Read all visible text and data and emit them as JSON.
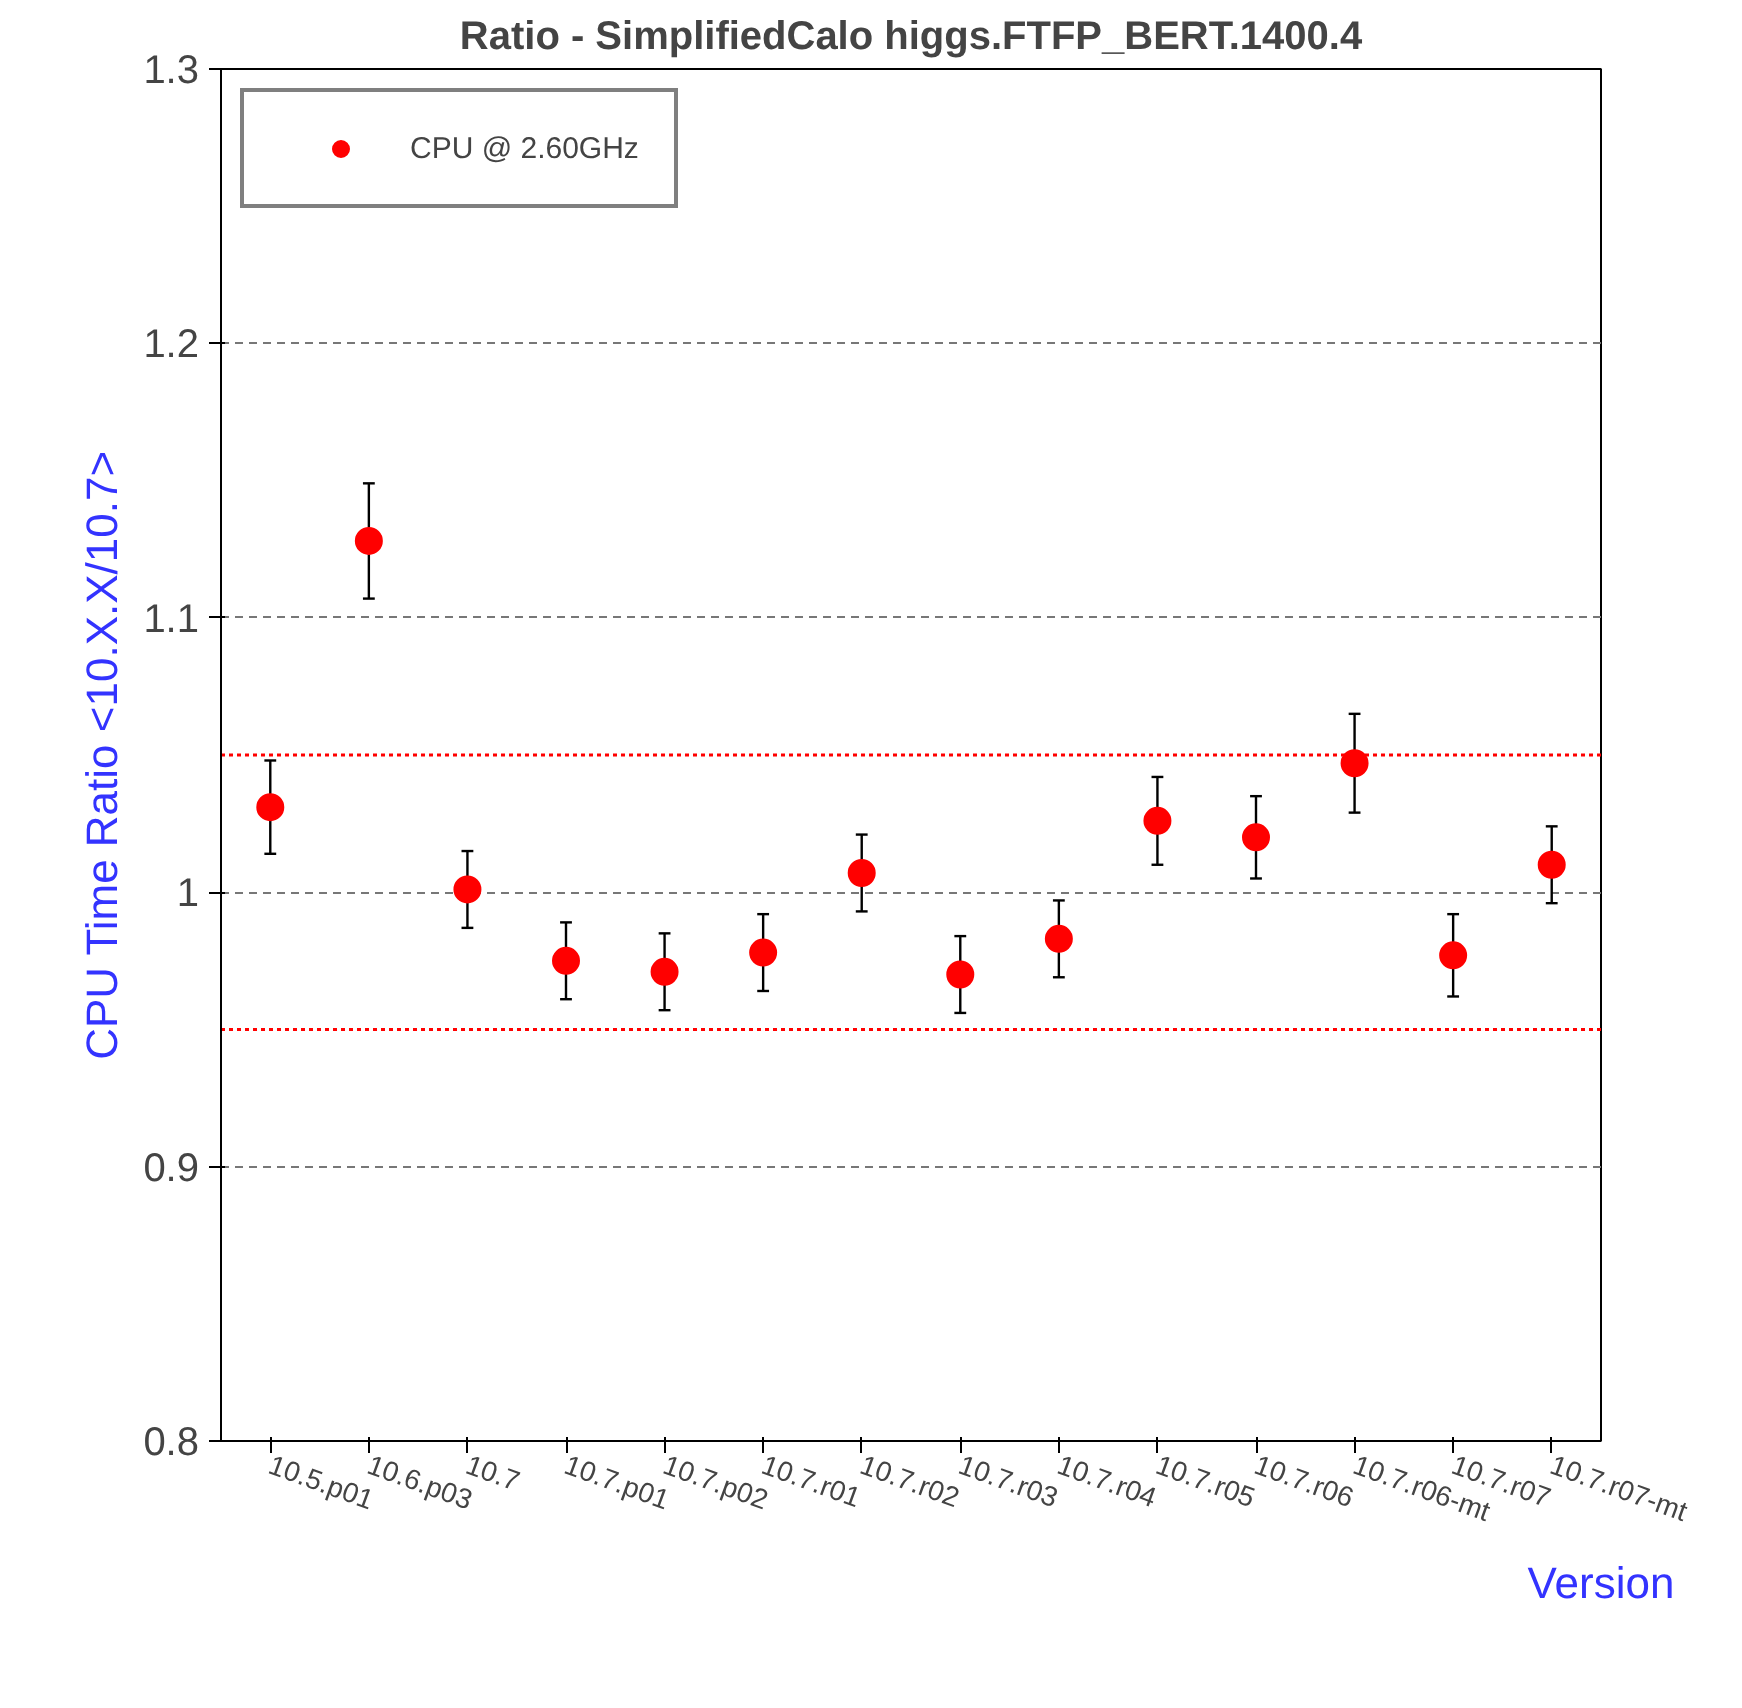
{
  "chart_data": {
    "type": "scatter",
    "title": "Ratio - SimplifiedCalo higgs.FTFP_BERT.1400.4",
    "xlabel": "Version",
    "ylabel": "CPU Time Ratio <10.X.X/10.7>",
    "categories": [
      "10.5.p01",
      "10.6.p03",
      "10.7",
      "10.7.p01",
      "10.7.p02",
      "10.7.r01",
      "10.7.r02",
      "10.7.r03",
      "10.7.r04",
      "10.7.r05",
      "10.7.r06",
      "10.7.r06-mt",
      "10.7.r07",
      "10.7.r07-mt"
    ],
    "series": [
      {
        "name": "CPU @ 2.60GHz",
        "color": "#ff0000",
        "values": [
          1.031,
          1.128,
          1.001,
          0.975,
          0.971,
          0.978,
          1.007,
          0.97,
          0.983,
          1.026,
          1.02,
          1.047,
          0.977,
          1.01
        ],
        "errors": [
          0.017,
          0.021,
          0.014,
          0.014,
          0.014,
          0.014,
          0.014,
          0.014,
          0.014,
          0.016,
          0.015,
          0.018,
          0.015,
          0.014
        ]
      }
    ],
    "ylim": [
      0.8,
      1.3
    ],
    "yticks": [
      0.8,
      0.9,
      {
        "value": 1.0,
        "label": "1"
      },
      1.1,
      1.2,
      1.3
    ],
    "ref_lines": [
      {
        "axis": "y",
        "value": 1.05,
        "color": "#ff0000",
        "line_style": "dotted"
      },
      {
        "axis": "y",
        "value": 0.95,
        "color": "#ff0000",
        "line_style": "dotted"
      }
    ],
    "grid": "y",
    "legend": "top left",
    "marker": "circle"
  }
}
